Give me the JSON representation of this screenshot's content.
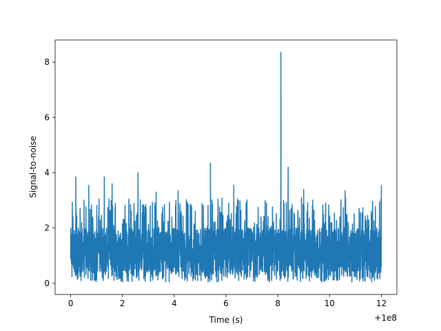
{
  "chart_data": {
    "type": "line",
    "title": "",
    "xlabel": "Time (s)",
    "ylabel": "Signal-to-noise",
    "x_offset_label": "+1e8",
    "xlim": [
      -0.6,
      12.6
    ],
    "ylim": [
      -0.4,
      8.8
    ],
    "x_ticks": [
      0,
      2,
      4,
      6,
      8,
      10,
      12
    ],
    "x_tick_labels": [
      "0",
      "2",
      "4",
      "6",
      "8",
      "10",
      "12"
    ],
    "y_ticks": [
      0,
      2,
      4,
      6,
      8
    ],
    "y_tick_labels": [
      "0",
      "2",
      "4",
      "6",
      "8"
    ],
    "grid": false,
    "legend": "none",
    "series": [
      {
        "color": "#1f77b4",
        "x_start": 0,
        "x_end": 12,
        "baseline_min": 0.05,
        "baseline_max": 2.5,
        "peaks": [
          {
            "x": 0.2,
            "y": 3.85
          },
          {
            "x": 0.7,
            "y": 3.55
          },
          {
            "x": 1.3,
            "y": 3.85
          },
          {
            "x": 1.6,
            "y": 3.6
          },
          {
            "x": 2.6,
            "y": 4.0
          },
          {
            "x": 3.3,
            "y": 3.3
          },
          {
            "x": 4.15,
            "y": 3.35
          },
          {
            "x": 5.4,
            "y": 4.35
          },
          {
            "x": 6.3,
            "y": 3.55
          },
          {
            "x": 8.12,
            "y": 8.35
          },
          {
            "x": 8.4,
            "y": 4.2
          },
          {
            "x": 9.0,
            "y": 3.4
          },
          {
            "x": 10.6,
            "y": 3.35
          },
          {
            "x": 12.0,
            "y": 3.55
          }
        ]
      }
    ]
  }
}
